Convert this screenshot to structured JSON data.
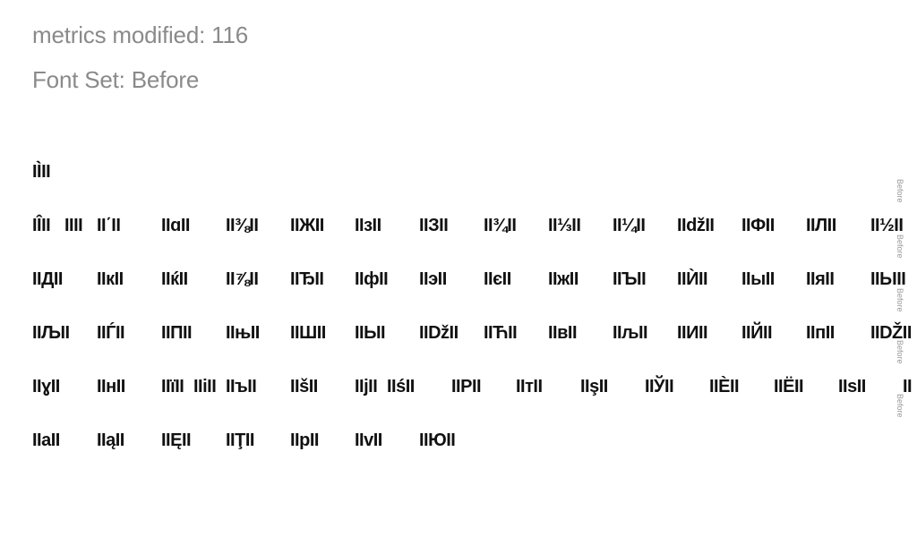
{
  "header": {
    "metrics_label": "metrics modified: 116",
    "font_set_label": "Font Set: Before"
  },
  "side_label": "Before",
  "glyph_rows": [
    [
      "IÌ̀II"
    ],
    [
      "IÎII",
      "IIII",
      "II΄II",
      "IIɑII",
      "II⅜II",
      "IIЖII",
      "IIзII",
      "IIЗII",
      "II¾II",
      "II⅓II",
      "II¼II",
      "IIdžII",
      "IIФII",
      "IIЛII",
      "II½II"
    ],
    [
      "IIДII",
      "IIкII",
      "IIќII",
      "II⅞II",
      "IIЂII",
      "IIфII",
      "IIэII",
      "IIєII",
      "IIжII",
      "IIЪII",
      "IIЍII",
      "IIыII",
      "IIяII",
      "IIЫII"
    ],
    [
      "IIЉII",
      "IIЃII",
      "IIПII",
      "IIњII",
      "IIШII",
      "IIЬII",
      "IIDžII",
      "IIЋII",
      "IIвII",
      "IIљII",
      "IIИII",
      "IIЙII",
      "IIпII",
      "IIDŽII"
    ],
    [
      "IIɣII",
      "IIнII",
      "IIїII",
      "IIіII",
      "IIъII",
      "IIšII",
      "IIјII",
      "IIśII",
      "IIРII",
      "IIтII",
      "IIşII",
      "IIЎII",
      "IIЀII",
      "IIЁII",
      "IIѕII",
      "II"
    ],
    [
      "IIаII",
      "IIąII",
      "IIĘII",
      "IIŢII",
      "IIрII",
      "IIvII",
      "IIЮII"
    ]
  ]
}
